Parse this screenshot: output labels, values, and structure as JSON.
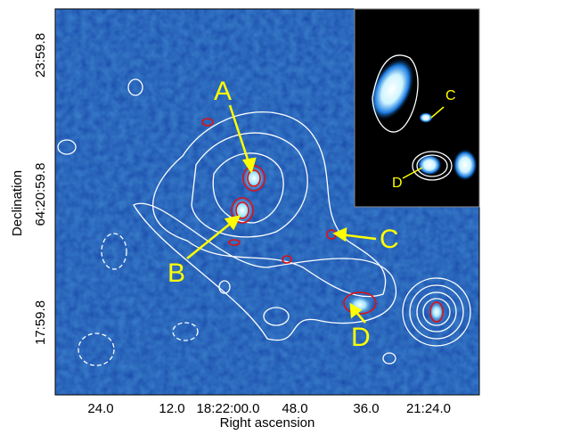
{
  "figure": {
    "x_axis": {
      "label": "Right ascension",
      "ticks": [
        "24.0",
        "12.0",
        "18:22:00.0",
        "48.0",
        "36.0",
        "21:24.0"
      ]
    },
    "y_axis": {
      "label": "Declination",
      "ticks": [
        "23:59.8",
        "64:20:59.8",
        "17:59.8"
      ]
    },
    "annotations": [
      "A",
      "B",
      "C",
      "D"
    ],
    "inset_annotations": [
      "C",
      "D"
    ]
  }
}
